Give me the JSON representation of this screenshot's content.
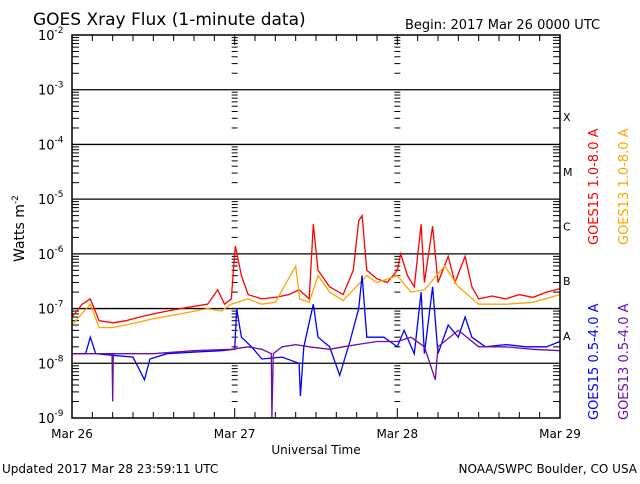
{
  "chart_data": {
    "type": "line",
    "title": "GOES Xray Flux (1-minute data)",
    "begin_label": "Begin:  2017 Mar 26 0000 UTC",
    "xlabel": "Universal Time",
    "ylabel": "Watts m",
    "ylabel_sup": "-2",
    "y_scale": "log",
    "ylim": [
      1e-09,
      0.01
    ],
    "x_unit": "hours since 2017 Mar 26 0000 UTC",
    "xlim": [
      0,
      72
    ],
    "x_ticks": [
      {
        "h": 0,
        "label": "Mar 26"
      },
      {
        "h": 24,
        "label": "Mar 27"
      },
      {
        "h": 48,
        "label": "Mar 28"
      },
      {
        "h": 72,
        "label": "Mar 29"
      }
    ],
    "y_ticks": [
      {
        "exp": "-9"
      },
      {
        "exp": "-8"
      },
      {
        "exp": "-7"
      },
      {
        "exp": "-6"
      },
      {
        "exp": "-5"
      },
      {
        "exp": "-4"
      },
      {
        "exp": "-3"
      },
      {
        "exp": "-2"
      }
    ],
    "flare_classes": [
      {
        "label": "X",
        "flux": 0.0001
      },
      {
        "label": "M",
        "flux": 1e-05
      },
      {
        "label": "C",
        "flux": 1e-06
      },
      {
        "label": "B",
        "flux": 1e-07
      },
      {
        "label": "A",
        "flux": 1e-08
      }
    ],
    "grid": "horizontal at decades",
    "series": [
      {
        "name": "GOES15 1.0-8.0 A",
        "color": "#ff0000",
        "points": [
          [
            0,
            7e-08
          ],
          [
            1.5,
            1.2e-07
          ],
          [
            2.7,
            1.5e-07
          ],
          [
            4,
            6e-08
          ],
          [
            6,
            5.5e-08
          ],
          [
            8,
            6e-08
          ],
          [
            10,
            7e-08
          ],
          [
            12,
            8e-08
          ],
          [
            14,
            9e-08
          ],
          [
            16,
            1e-07
          ],
          [
            18,
            1.1e-07
          ],
          [
            20,
            1.2e-07
          ],
          [
            21.5,
            2.2e-07
          ],
          [
            22.5,
            1.2e-07
          ],
          [
            23.5,
            1.5e-07
          ],
          [
            24.1,
            1.4e-06
          ],
          [
            25,
            4e-07
          ],
          [
            26,
            1.8e-07
          ],
          [
            28,
            1.5e-07
          ],
          [
            30,
            1.6e-07
          ],
          [
            32,
            1.8e-07
          ],
          [
            33.5,
            2.2e-07
          ],
          [
            35,
            1.5e-07
          ],
          [
            35.6,
            3.5e-06
          ],
          [
            36.3,
            5e-07
          ],
          [
            38,
            2.5e-07
          ],
          [
            40,
            1.8e-07
          ],
          [
            41.5,
            5e-07
          ],
          [
            42.3,
            4e-06
          ],
          [
            42.8,
            5e-06
          ],
          [
            43.5,
            5e-07
          ],
          [
            45,
            3.5e-07
          ],
          [
            46.5,
            3e-07
          ],
          [
            48,
            5e-07
          ],
          [
            48.5,
            1e-06
          ],
          [
            49.5,
            4e-07
          ],
          [
            50.5,
            2.5e-07
          ],
          [
            51.5,
            3.5e-06
          ],
          [
            52,
            3e-07
          ],
          [
            53.2,
            3.2e-06
          ],
          [
            54,
            3e-07
          ],
          [
            55.5,
            9e-07
          ],
          [
            56.5,
            3e-07
          ],
          [
            58,
            9e-07
          ],
          [
            59,
            2.5e-07
          ],
          [
            60,
            1.5e-07
          ],
          [
            62,
            1.7e-07
          ],
          [
            64,
            1.5e-07
          ],
          [
            66,
            1.8e-07
          ],
          [
            68,
            1.6e-07
          ],
          [
            70,
            2e-07
          ],
          [
            72,
            2.3e-07
          ]
        ]
      },
      {
        "name": "GOES13 1.0-8.0 A",
        "color": "#ffa500",
        "points": [
          [
            0,
            5e-08
          ],
          [
            2.7,
            1.2e-07
          ],
          [
            4,
            4.5e-08
          ],
          [
            6,
            4.5e-08
          ],
          [
            8,
            5e-08
          ],
          [
            12,
            6.5e-08
          ],
          [
            16,
            8e-08
          ],
          [
            20,
            1e-07
          ],
          [
            22,
            9e-08
          ],
          [
            23.5,
            1.2e-07
          ],
          [
            26,
            1.5e-07
          ],
          [
            28,
            1.2e-07
          ],
          [
            30,
            1.3e-07
          ],
          [
            33,
            6e-07
          ],
          [
            33.6,
            1.5e-07
          ],
          [
            35,
            1.3e-07
          ],
          [
            36.3,
            4e-07
          ],
          [
            38,
            2e-07
          ],
          [
            40,
            1.4e-07
          ],
          [
            43.5,
            4e-07
          ],
          [
            45,
            3e-07
          ],
          [
            48,
            4e-07
          ],
          [
            50,
            2e-07
          ],
          [
            52,
            2.2e-07
          ],
          [
            55,
            6e-07
          ],
          [
            57,
            2.5e-07
          ],
          [
            60,
            1.2e-07
          ],
          [
            64,
            1.2e-07
          ],
          [
            68,
            1.3e-07
          ],
          [
            72,
            1.8e-07
          ]
        ]
      },
      {
        "name": "GOES15 0.5-4.0 A",
        "color": "#0000ff",
        "points": [
          [
            0,
            1.5e-08
          ],
          [
            2,
            1.5e-08
          ],
          [
            2.7,
            3e-08
          ],
          [
            3.5,
            1.5e-08
          ],
          [
            6,
            1.4e-08
          ],
          [
            9,
            1.3e-08
          ],
          [
            10.7,
            5e-09
          ],
          [
            11.5,
            1.2e-08
          ],
          [
            14,
            1.5e-08
          ],
          [
            18,
            1.6e-08
          ],
          [
            22,
            1.7e-08
          ],
          [
            24,
            1.8e-08
          ],
          [
            24.3,
            1e-07
          ],
          [
            25,
            3e-08
          ],
          [
            26.5,
            2e-08
          ],
          [
            28,
            1.2e-08
          ],
          [
            31,
            1.3e-08
          ],
          [
            33.5,
            1e-08
          ],
          [
            33.7,
            2.5e-09
          ],
          [
            34.2,
            2e-08
          ],
          [
            35.6,
            1.2e-07
          ],
          [
            36.3,
            3e-08
          ],
          [
            38,
            2e-08
          ],
          [
            39.5,
            6e-09
          ],
          [
            41,
            2.5e-08
          ],
          [
            42.3,
            1e-07
          ],
          [
            42.8,
            4e-07
          ],
          [
            43.5,
            3e-08
          ],
          [
            46,
            3e-08
          ],
          [
            48,
            2e-08
          ],
          [
            49,
            4e-08
          ],
          [
            50.5,
            1.5e-08
          ],
          [
            51.5,
            2e-07
          ],
          [
            52,
            1.5e-08
          ],
          [
            53.2,
            2.5e-07
          ],
          [
            54,
            1.5e-08
          ],
          [
            55.5,
            5e-08
          ],
          [
            57,
            3e-08
          ],
          [
            58,
            7e-08
          ],
          [
            59,
            3e-08
          ],
          [
            61,
            2e-08
          ],
          [
            64,
            2.2e-08
          ],
          [
            67,
            2e-08
          ],
          [
            70,
            2e-08
          ],
          [
            72,
            2.5e-08
          ]
        ]
      },
      {
        "name": "GOES13 0.5-4.0 A",
        "color": "#6a0dad",
        "points": [
          [
            0,
            1.5e-08
          ],
          [
            5.9,
            1.5e-08
          ],
          [
            6,
            2e-09
          ],
          [
            6.1,
            1.5e-08
          ],
          [
            12,
            1.5e-08
          ],
          [
            18,
            1.7e-08
          ],
          [
            23.5,
            1.8e-08
          ],
          [
            26,
            2e-08
          ],
          [
            28,
            1.8e-08
          ],
          [
            29.4,
            1.5e-08
          ],
          [
            29.5,
            1e-09
          ],
          [
            29.7,
            1.5e-08
          ],
          [
            31,
            2e-08
          ],
          [
            33,
            2.2e-08
          ],
          [
            35,
            2e-08
          ],
          [
            38,
            1.8e-08
          ],
          [
            40,
            2e-08
          ],
          [
            42,
            2.2e-08
          ],
          [
            45,
            2.5e-08
          ],
          [
            48,
            2.5e-08
          ],
          [
            50,
            3e-08
          ],
          [
            52,
            2e-08
          ],
          [
            53.6,
            5e-09
          ],
          [
            54,
            2e-08
          ],
          [
            57,
            4e-08
          ],
          [
            60,
            2e-08
          ],
          [
            64,
            2e-08
          ],
          [
            68,
            1.8e-08
          ],
          [
            72,
            1.7e-08
          ]
        ]
      }
    ]
  },
  "footer": {
    "updated": "Updated 2017 Mar 28 23:59:11 UTC",
    "credit": "NOAA/SWPC Boulder, CO USA"
  }
}
